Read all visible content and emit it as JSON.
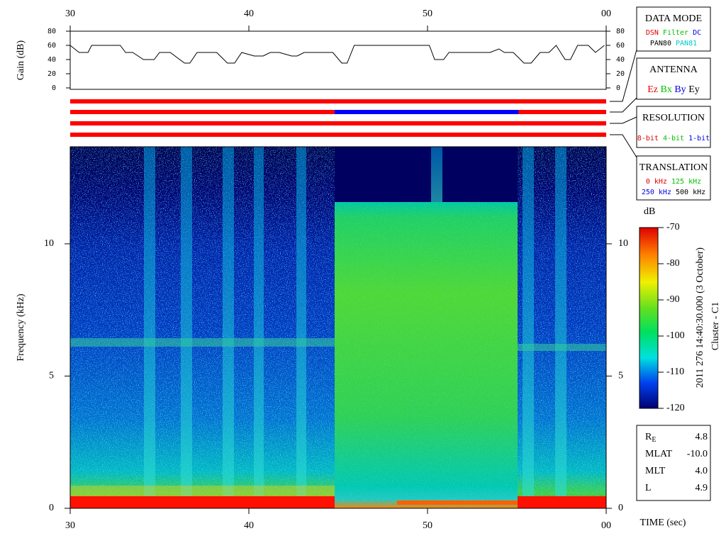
{
  "chart_data": [
    {
      "type": "line",
      "ylabel": "Gain (dB)",
      "color": "#000000",
      "xlim": [
        30,
        60
      ],
      "xticks": [
        30,
        40,
        50,
        {
          "value": 60,
          "label": "00"
        }
      ],
      "ylim": [
        0,
        80
      ],
      "yticks": [
        0,
        20,
        40,
        60,
        80
      ],
      "x": [
        30.0,
        30.5,
        31.0,
        31.2,
        32.8,
        33.1,
        33.5,
        34.1,
        34.7,
        35.0,
        35.6,
        36.4,
        36.7,
        37.1,
        38.2,
        38.8,
        39.2,
        39.6,
        40.3,
        40.8,
        41.2,
        41.7,
        42.4,
        42.7,
        43.1,
        44.7,
        45.2,
        45.5,
        45.9,
        50.1,
        50.4,
        50.9,
        51.2,
        53.5,
        54.0,
        54.3,
        54.8,
        55.4,
        55.8,
        56.3,
        56.8,
        57.2,
        57.7,
        58.0,
        58.4,
        59.0,
        59.4,
        59.9
      ],
      "values": [
        60,
        50,
        50,
        60,
        60,
        50,
        50,
        40,
        40,
        50,
        50,
        35,
        35,
        50,
        50,
        35,
        35,
        50,
        45,
        45,
        50,
        50,
        45,
        45,
        50,
        50,
        35,
        35,
        60,
        60,
        40,
        40,
        50,
        50,
        55,
        50,
        50,
        35,
        35,
        50,
        50,
        60,
        40,
        40,
        60,
        60,
        50,
        60
      ]
    },
    {
      "type": "spectrogram",
      "xlabel": "TIME (sec)",
      "ylabel": "Frequency (kHz)",
      "xlim": [
        30,
        60
      ],
      "xticks": [
        30,
        40,
        50,
        {
          "value": 60,
          "label": "00"
        }
      ],
      "ylim": [
        0,
        13.67
      ],
      "yticks": [
        0,
        5,
        10
      ],
      "colorbar": {
        "label": "dB",
        "lim": [
          -120,
          -70
        ],
        "ticks": [
          -70,
          -80,
          -90,
          -100,
          -110,
          -120
        ]
      }
    }
  ],
  "status_bars": [
    [
      {
        "start": 30,
        "end": 60,
        "color": "#ff0000"
      }
    ],
    [
      {
        "start": 30,
        "end": 44.8,
        "color": "#ff0000"
      },
      {
        "start": 44.8,
        "end": 55.1,
        "color": "#0000ff"
      },
      {
        "start": 55.1,
        "end": 60,
        "color": "#ff0000"
      }
    ],
    [
      {
        "start": 30,
        "end": 60,
        "color": "#ff0000"
      }
    ],
    [
      {
        "start": 30,
        "end": 60,
        "color": "#ff0000"
      }
    ]
  ],
  "legend_boxes": [
    {
      "title": "DATA MODE",
      "rows": [
        [
          {
            "text": "DSN",
            "color": "#e00000"
          },
          {
            "text": "Filter",
            "color": "#00c000"
          },
          {
            "text": "DC",
            "color": "#0000e0"
          }
        ],
        [
          {
            "text": "PAN80",
            "color": "#000000"
          },
          {
            "text": "PAN81",
            "color": "#00c8c8"
          }
        ]
      ]
    },
    {
      "title": "ANTENNA",
      "rows": [
        [
          {
            "text": "Ez",
            "color": "#e00000"
          },
          {
            "text": "Bx",
            "color": "#00c000"
          },
          {
            "text": "By",
            "color": "#0000e0"
          },
          {
            "text": "Ey",
            "color": "#000000"
          }
        ]
      ]
    },
    {
      "title": "RESOLUTION",
      "rows": [
        [
          {
            "text": "8-bit",
            "color": "#e00000"
          },
          {
            "text": "4-bit",
            "color": "#00c000"
          },
          {
            "text": "1-bit",
            "color": "#0000e0"
          }
        ]
      ]
    },
    {
      "title": "TRANSLATION",
      "rows": [
        [
          {
            "text": "0 kHz",
            "color": "#e00000"
          },
          {
            "text": "125 kHz",
            "color": "#00c000"
          }
        ],
        [
          {
            "text": "250 kHz",
            "color": "#0000e0"
          },
          {
            "text": "500 kHz",
            "color": "#000000"
          }
        ]
      ]
    }
  ],
  "side_text": [
    "2011 276 14:40:30.000 (3 October)",
    "Cluster - C1"
  ],
  "info": [
    {
      "label": "R",
      "sub": "E",
      "value": "4.8"
    },
    {
      "label": "MLAT",
      "value": "-10.0"
    },
    {
      "label": "MLT",
      "value": "4.0"
    },
    {
      "label": "L",
      "value": "4.9"
    }
  ]
}
